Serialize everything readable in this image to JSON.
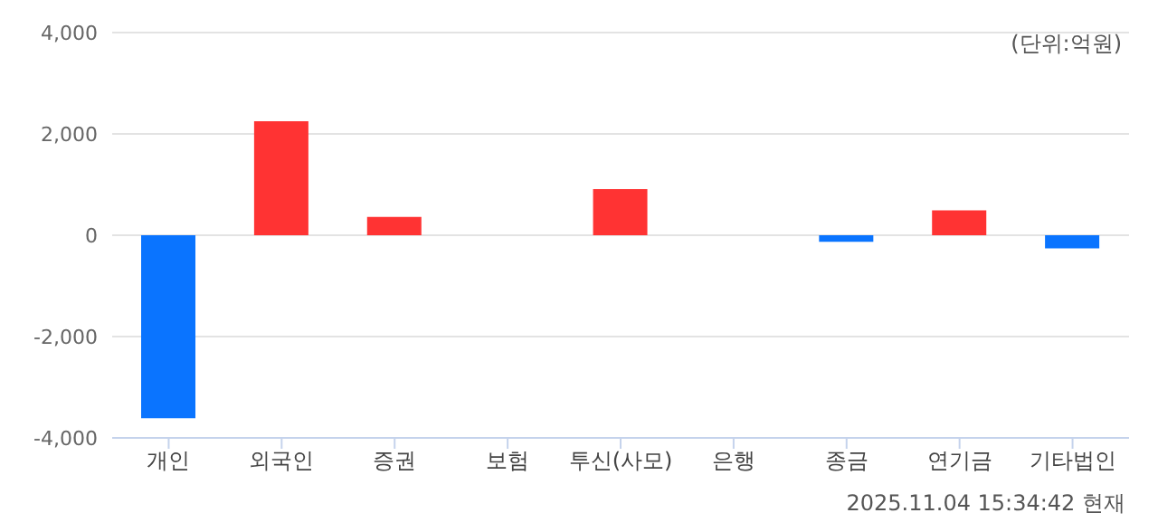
{
  "chart_data": {
    "type": "bar",
    "categories": [
      "개인",
      "외국인",
      "증권",
      "보험",
      "투신(사모)",
      "은행",
      "종금",
      "연기금",
      "기타법인"
    ],
    "values": [
      -3610,
      2250,
      360,
      0,
      910,
      0,
      -130,
      490,
      -260
    ],
    "colors": [
      "#0a74ff",
      "#ff3333",
      "#ff3333",
      "#ff3333",
      "#ff3333",
      "#ff3333",
      "#0a74ff",
      "#ff3333",
      "#0a74ff"
    ],
    "ylim": [
      -4000,
      4000
    ],
    "yticks": [
      {
        "value": -4000,
        "label": "-4,000"
      },
      {
        "value": -2000,
        "label": "-2,000"
      },
      0,
      {
        "value": 2000,
        "label": "2,000"
      },
      {
        "value": 4000,
        "label": "4,000"
      }
    ],
    "grid": "y",
    "annotations": [
      "(단위:억원)",
      "2025.11.04 15:34:42 현재"
    ]
  }
}
